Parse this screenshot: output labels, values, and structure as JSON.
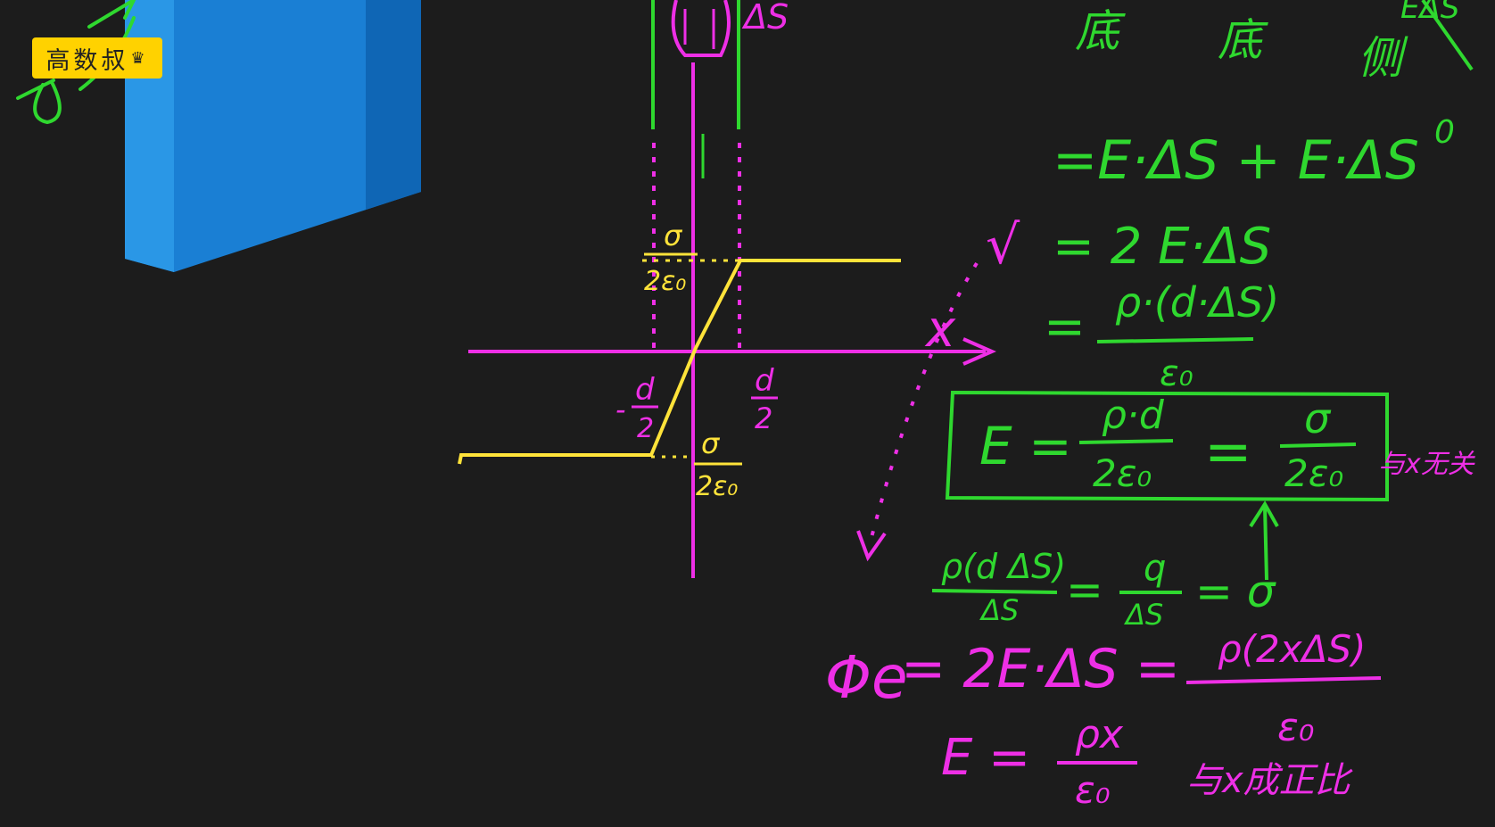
{
  "logo": {
    "text": "高数叔"
  },
  "colors": {
    "magenta": "#ee2fe6",
    "green": "#2fd82f",
    "yellow": "#ffe33a",
    "blue": "#1a7fd4",
    "background": "#1c1c1c"
  },
  "top": {
    "delta_s": "ΔS",
    "green_fragment_1": "底",
    "green_fragment_2": "底",
    "green_fragment_3": "侧",
    "green_fragment_4": "EΔS",
    "zero": "0"
  },
  "graph": {
    "x_label": "x",
    "pos_half_d": {
      "num": "d",
      "den": "2"
    },
    "neg_half_d": {
      "sign": "-",
      "num": "d",
      "den": "2"
    },
    "upper_level": {
      "num": "σ",
      "den": "2ε₀"
    },
    "lower_level": {
      "num": "σ",
      "den": "2ε₀"
    }
  },
  "green_math": {
    "line1": "=E·ΔS + E·ΔS",
    "line2_lhs": "√",
    "line2": "= 2 E·ΔS",
    "line3_eq": "=",
    "line3_num": "ρ·(d·ΔS)",
    "line3_den": "ε₀",
    "box_E": "E =",
    "box_frac1_num": "ρ·d",
    "box_frac1_den": "2ε₀",
    "box_eq": "=",
    "box_frac2_num": "σ",
    "box_frac2_den": "2ε₀",
    "side_note": "与x无关",
    "sub_num1": "ρ(d ΔS)",
    "sub_den1": "ΔS",
    "sub_eq1": "=",
    "sub_num2": "q",
    "sub_den2": "ΔS",
    "sub_eq2": "= σ"
  },
  "magenta_math": {
    "phi": "Φe",
    "flux": "= 2E·ΔS =",
    "flux_num": "ρ(2xΔS)",
    "flux_den": "ε₀",
    "e_lhs": "E =",
    "e_num": "ρx",
    "e_den": "ε₀",
    "note": "与x成正比"
  }
}
